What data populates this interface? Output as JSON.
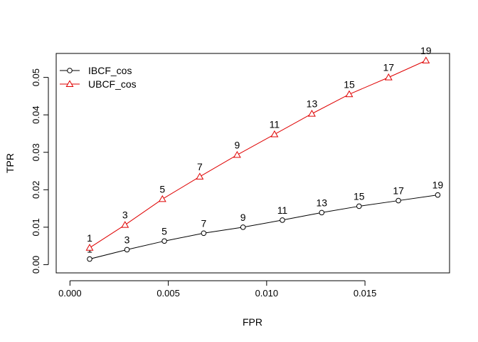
{
  "chart_data": {
    "type": "line",
    "title": "",
    "xlabel": "FPR",
    "ylabel": "TPR",
    "xlim": [
      -0.0007,
      0.0193
    ],
    "ylim": [
      -0.0022,
      0.0564
    ],
    "x_ticks": [
      0.0,
      0.005,
      0.01,
      0.015
    ],
    "x_tick_labels": [
      "0.000",
      "0.005",
      "0.010",
      "0.015"
    ],
    "y_ticks": [
      0.0,
      0.01,
      0.02,
      0.03,
      0.04,
      0.05
    ],
    "y_tick_labels": [
      "0.00",
      "0.01",
      "0.02",
      "0.03",
      "0.04",
      "0.05"
    ],
    "grid": false,
    "legend_position": "top-left",
    "series": [
      {
        "name": "IBCF_cos",
        "color": "#000000",
        "marker": "circle",
        "point_labels": [
          "1",
          "3",
          "5",
          "7",
          "9",
          "11",
          "13",
          "15",
          "17",
          "19"
        ],
        "x": [
          0.001,
          0.0029,
          0.0048,
          0.0068,
          0.0088,
          0.0108,
          0.0128,
          0.0147,
          0.0167,
          0.0187
        ],
        "y": [
          0.0015,
          0.004,
          0.0063,
          0.0084,
          0.01,
          0.0119,
          0.0139,
          0.0156,
          0.0171,
          0.0186
        ]
      },
      {
        "name": "UBCF_cos",
        "color": "#DF0000",
        "marker": "triangle",
        "point_labels": [
          "1",
          "3",
          "5",
          "7",
          "9",
          "11",
          "13",
          "15",
          "17",
          "19"
        ],
        "x": [
          0.001,
          0.0028,
          0.0047,
          0.0066,
          0.0085,
          0.0104,
          0.0123,
          0.0142,
          0.0162,
          0.0181
        ],
        "y": [
          0.0045,
          0.0106,
          0.0175,
          0.0235,
          0.0293,
          0.0348,
          0.0403,
          0.0455,
          0.05,
          0.0545
        ]
      }
    ]
  }
}
